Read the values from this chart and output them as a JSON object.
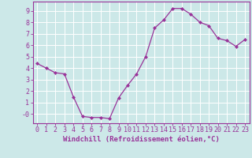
{
  "x": [
    0,
    1,
    2,
    3,
    4,
    5,
    6,
    7,
    8,
    9,
    10,
    11,
    12,
    13,
    14,
    15,
    16,
    17,
    18,
    19,
    20,
    21,
    22,
    23
  ],
  "y": [
    4.4,
    4.0,
    3.6,
    3.5,
    1.5,
    -0.2,
    -0.3,
    -0.3,
    -0.4,
    1.4,
    2.5,
    3.5,
    5.0,
    7.5,
    8.2,
    9.2,
    9.2,
    8.7,
    8.0,
    7.7,
    6.6,
    6.4,
    5.9,
    6.5
  ],
  "line_color": "#993399",
  "marker": "D",
  "marker_size": 2,
  "bg_color": "#cce8e8",
  "grid_color": "#ffffff",
  "axis_color": "#993399",
  "xlabel": "Windchill (Refroidissement éolien,°C)",
  "xlabel_fontsize": 6.5,
  "tick_fontsize": 6,
  "ylim": [
    -0.8,
    9.8
  ],
  "xlim": [
    -0.5,
    23.5
  ],
  "yticks": [
    0,
    1,
    2,
    3,
    4,
    5,
    6,
    7,
    8,
    9
  ],
  "xticks": [
    0,
    1,
    2,
    3,
    4,
    5,
    6,
    7,
    8,
    9,
    10,
    11,
    12,
    13,
    14,
    15,
    16,
    17,
    18,
    19,
    20,
    21,
    22,
    23
  ],
  "ytick_labels": [
    "-0",
    "1",
    "2",
    "3",
    "4",
    "5",
    "6",
    "7",
    "8",
    "9"
  ]
}
